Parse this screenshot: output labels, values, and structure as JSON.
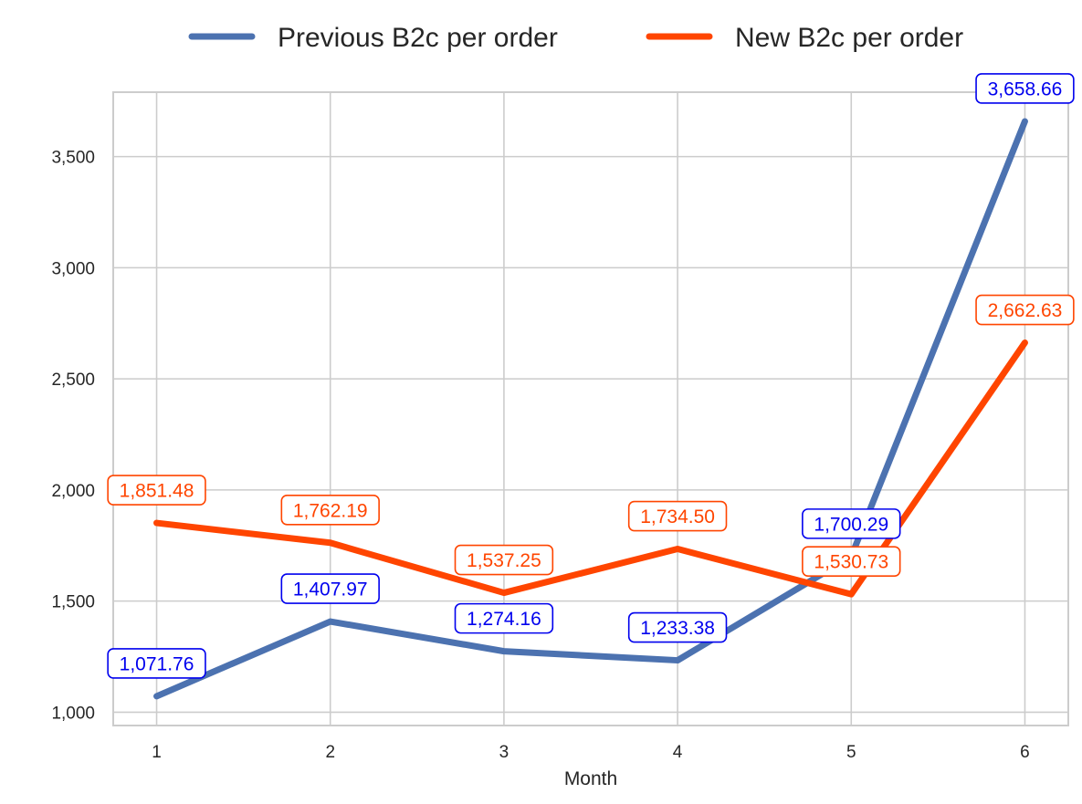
{
  "chart_data": {
    "type": "line",
    "title": "",
    "xlabel": "Month",
    "ylabel": "",
    "x": [
      1,
      2,
      3,
      4,
      5,
      6
    ],
    "x_tick_labels": [
      "1",
      "2",
      "3",
      "4",
      "5",
      "6"
    ],
    "y_ticks": [
      1000,
      1500,
      2000,
      2500,
      3000,
      3500
    ],
    "y_tick_labels": [
      "1,000",
      "1,500",
      "2,000",
      "2,500",
      "3,000",
      "3,500"
    ],
    "xlim": [
      0.75,
      6.25
    ],
    "ylim": [
      940,
      3790
    ],
    "grid": true,
    "legend_position": "top-center",
    "series": [
      {
        "name": "Previous B2c per order",
        "color": "#4c72b0",
        "label_color": "#0000ee",
        "values": [
          1071.76,
          1407.97,
          1274.16,
          1233.38,
          1700.29,
          3658.66
        ],
        "labels": [
          "1,071.76",
          "1,407.97",
          "1,274.16",
          "1,233.38",
          "1,700.29",
          "3,658.66"
        ]
      },
      {
        "name": "New B2c per order",
        "color": "#ff4500",
        "label_color": "#ff4500",
        "values": [
          1851.48,
          1762.19,
          1537.25,
          1734.5,
          1530.73,
          2662.63
        ],
        "labels": [
          "1,851.48",
          "1,762.19",
          "1,537.25",
          "1,734.50",
          "1,530.73",
          "2,662.63"
        ]
      }
    ]
  }
}
